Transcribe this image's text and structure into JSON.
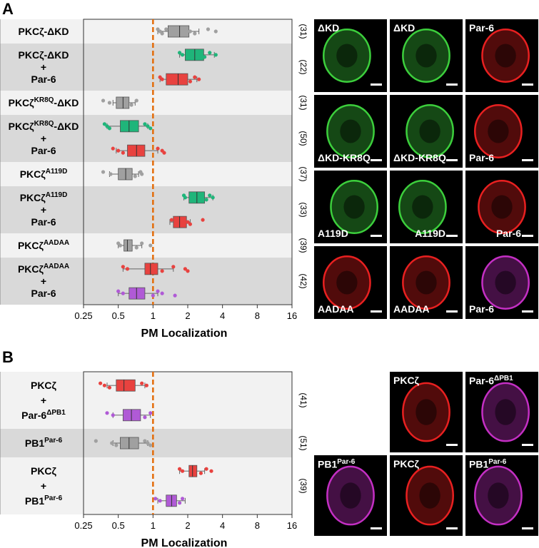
{
  "panels": {
    "a": {
      "letter": "A"
    },
    "b": {
      "letter": "B"
    }
  },
  "colors": {
    "gray": "#a0a0a0",
    "green": "#1fb57a",
    "red": "#e8423f",
    "purple": "#b05ad6",
    "threshold": "#e36c0a",
    "band_light": "#f2f2f2",
    "band_dark": "#d9d9d9",
    "micro_green": "#3ccf3c",
    "micro_red": "#e82020",
    "micro_magenta": "#c42fc4"
  },
  "chart_data": [
    {
      "type": "boxplot",
      "panel": "A",
      "xlabel": "PM Localization",
      "xscale": "log2",
      "xlim": [
        0.25,
        16
      ],
      "xticks": [
        "0.25",
        "0.5",
        "1",
        "2",
        "4",
        "8",
        "16"
      ],
      "threshold": 1,
      "groups": [
        {
          "label": "PKCζ-ΔKD",
          "sup": "",
          "par6": false,
          "n": "(31)",
          "boxes": [
            {
              "color": "gray",
              "q1": 1.35,
              "median": 1.7,
              "q3": 2.05,
              "whisker_low": 1.1,
              "whisker_high": 2.5,
              "points": [
                1.1,
                1.15,
                1.2,
                1.3,
                2.1,
                2.3,
                3.0,
                3.5
              ]
            }
          ]
        },
        {
          "label": "PKCζ-ΔKD",
          "sup": "",
          "par6": true,
          "n": "(22)",
          "boxes": [
            {
              "color": "green",
              "q1": 1.9,
              "median": 2.3,
              "q3": 2.75,
              "whisker_low": 1.7,
              "whisker_high": 3.4,
              "points": [
                1.7,
                1.8,
                2.8,
                3.1,
                3.5
              ]
            },
            {
              "color": "red",
              "q1": 1.3,
              "median": 1.65,
              "q3": 2.0,
              "whisker_low": 1.15,
              "whisker_high": 2.4,
              "points": [
                1.15,
                1.2,
                2.1,
                2.3,
                2.5
              ]
            }
          ]
        },
        {
          "label": "PKCζ",
          "sup": "KR8Q",
          "suffix": "-ΔKD",
          "par6": false,
          "n": "(31)",
          "boxes": [
            {
              "color": "gray",
              "q1": 0.48,
              "median": 0.55,
              "q3": 0.62,
              "whisker_low": 0.45,
              "whisker_high": 0.7,
              "points": [
                0.37,
                0.42,
                0.65,
                0.72
              ]
            }
          ]
        },
        {
          "label": "PKCζ",
          "sup": "KR8Q",
          "suffix": "-ΔKD",
          "par6": true,
          "n": "(50)",
          "boxes": [
            {
              "color": "green",
              "q1": 0.52,
              "median": 0.62,
              "q3": 0.75,
              "whisker_low": 0.4,
              "whisker_high": 0.9,
              "points": [
                0.38,
                0.4,
                0.42,
                0.85,
                0.9,
                0.95
              ]
            },
            {
              "color": "red",
              "q1": 0.6,
              "median": 0.72,
              "q3": 0.85,
              "whisker_low": 0.48,
              "whisker_high": 1.1,
              "points": [
                0.45,
                0.5,
                0.55,
                1.1,
                1.2,
                1.25
              ]
            }
          ]
        },
        {
          "label": "PKCζ",
          "sup": "A119D",
          "suffix": "",
          "par6": false,
          "n": "(37)",
          "boxes": [
            {
              "color": "gray",
              "q1": 0.5,
              "median": 0.58,
              "q3": 0.66,
              "whisker_low": 0.42,
              "whisker_high": 0.75,
              "points": [
                0.37,
                0.43,
                0.7,
                0.78,
                0.8
              ]
            }
          ]
        },
        {
          "label": "PKCζ",
          "sup": "A119D",
          "suffix": "",
          "par6": true,
          "n": "(33)",
          "boxes": [
            {
              "color": "green",
              "q1": 2.05,
              "median": 2.4,
              "q3": 2.8,
              "whisker_low": 1.85,
              "whisker_high": 3.3,
              "points": [
                1.85,
                1.9,
                2.9,
                3.1,
                3.3
              ]
            },
            {
              "color": "red",
              "q1": 1.5,
              "median": 1.7,
              "q3": 1.95,
              "whisker_low": 1.4,
              "whisker_high": 2.1,
              "points": [
                1.45,
                2.0,
                2.1,
                2.7
              ]
            }
          ]
        },
        {
          "label": "PKCζ",
          "sup": "AADAA",
          "suffix": "",
          "par6": false,
          "n": "(39)",
          "boxes": [
            {
              "color": "gray",
              "q1": 0.56,
              "median": 0.6,
              "q3": 0.66,
              "whisker_low": 0.5,
              "whisker_high": 0.8,
              "points": [
                0.5,
                0.52,
                0.72,
                0.8,
                0.95
              ]
            }
          ]
        },
        {
          "label": "PKCζ",
          "sup": "AADAA",
          "suffix": "",
          "par6": true,
          "n": "(42)",
          "boxes": [
            {
              "color": "red",
              "q1": 0.85,
              "median": 0.95,
              "q3": 1.1,
              "whisker_low": 0.55,
              "whisker_high": 1.5,
              "points": [
                0.55,
                0.6,
                1.2,
                1.5,
                1.9,
                2.0
              ]
            },
            {
              "color": "purple",
              "q1": 0.62,
              "median": 0.72,
              "q3": 0.85,
              "whisker_low": 0.5,
              "whisker_high": 1.1,
              "points": [
                0.5,
                0.55,
                1.0,
                1.1,
                1.2,
                1.55
              ]
            }
          ]
        }
      ]
    },
    {
      "type": "boxplot",
      "panel": "B",
      "xlabel": "PM Localization",
      "xscale": "log2",
      "xlim": [
        0.25,
        16
      ],
      "xticks": [
        "0.25",
        "0.5",
        "1",
        "2",
        "4",
        "8",
        "16"
      ],
      "threshold": 1,
      "groups": [
        {
          "label": "PKCζ",
          "sup": "",
          "par6": true,
          "par6_sup": "ΔPB1",
          "n": "(41)",
          "boxes": [
            {
              "color": "red",
              "q1": 0.48,
              "median": 0.56,
              "q3": 0.7,
              "whisker_low": 0.4,
              "whisker_high": 0.85,
              "points": [
                0.35,
                0.38,
                0.42,
                0.8,
                0.88
              ]
            },
            {
              "color": "purple",
              "q1": 0.55,
              "median": 0.65,
              "q3": 0.78,
              "whisker_low": 0.45,
              "whisker_high": 0.95,
              "points": [
                0.4,
                0.45,
                0.85,
                0.95
              ]
            }
          ]
        },
        {
          "label": "PB1",
          "sup": "Par-6",
          "par6": false,
          "n": "(51)",
          "boxes": [
            {
              "color": "gray",
              "q1": 0.52,
              "median": 0.62,
              "q3": 0.75,
              "whisker_low": 0.45,
              "whisker_high": 0.9,
              "points": [
                0.32,
                0.44,
                0.48,
                0.85,
                0.9,
                0.95
              ]
            }
          ]
        },
        {
          "label": "PKCζ",
          "sup": "",
          "par6": true,
          "par6_label": "PB1",
          "par6_sup": "Par-6",
          "n": "(39)",
          "boxes": [
            {
              "color": "red",
              "q1": 2.05,
              "median": 2.2,
              "q3": 2.4,
              "whisker_low": 1.7,
              "whisker_high": 2.8,
              "points": [
                1.7,
                1.8,
                2.6,
                2.9,
                3.2
              ]
            },
            {
              "color": "purple",
              "q1": 1.3,
              "median": 1.45,
              "q3": 1.6,
              "whisker_low": 1.1,
              "whisker_high": 1.9,
              "points": [
                1.05,
                1.15,
                1.7,
                1.8
              ]
            }
          ]
        }
      ]
    }
  ],
  "plus_sign": "+",
  "par6_label": "Par-6",
  "micrographs": {
    "a": [
      [
        {
          "label": "ΔKD",
          "pos": "tl",
          "color": "micro_green"
        },
        {
          "label": "ΔKD",
          "pos": "tl",
          "color": "micro_green"
        },
        {
          "label": "Par-6",
          "pos": "tl",
          "color": "micro_red"
        }
      ],
      [
        {
          "label": "",
          "pos": "tl",
          "color": "micro_green"
        },
        {
          "label": "ΔKD-KR8Q",
          "pos": "bl",
          "color": "micro_green"
        },
        {
          "label": "Par-6",
          "pos": "bl",
          "color": "micro_red"
        }
      ],
      [
        {
          "label": "A119D",
          "pos": "bl",
          "color": "micro_green"
        },
        {
          "label": "A119D",
          "pos": "br",
          "color": "micro_green"
        },
        {
          "label": "Par-6",
          "pos": "br",
          "color": "micro_red"
        }
      ],
      [
        {
          "label": "AADAA",
          "pos": "bl",
          "color": "micro_red"
        },
        {
          "label": "AADAA",
          "pos": "bl",
          "color": "micro_red"
        },
        {
          "label": "Par-6",
          "pos": "bl",
          "color": "micro_magenta"
        }
      ]
    ],
    "a_row2_first": "ΔKD-KR8Q",
    "b": [
      [
        {
          "label": "",
          "color": ""
        },
        {
          "label": "PKCζ",
          "sup": "",
          "pos": "tl",
          "color": "micro_red"
        },
        {
          "label": "Par-6",
          "sup": "ΔPB1",
          "pos": "tl",
          "color": "micro_magenta"
        }
      ],
      [
        {
          "label": "PB1",
          "sup": "Par-6",
          "pos": "tl",
          "color": "micro_magenta"
        },
        {
          "label": "PKCζ",
          "sup": "",
          "pos": "tl",
          "color": "micro_red"
        },
        {
          "label": "PB1",
          "sup": "Par-6",
          "pos": "tl",
          "color": "micro_magenta"
        }
      ]
    ]
  }
}
